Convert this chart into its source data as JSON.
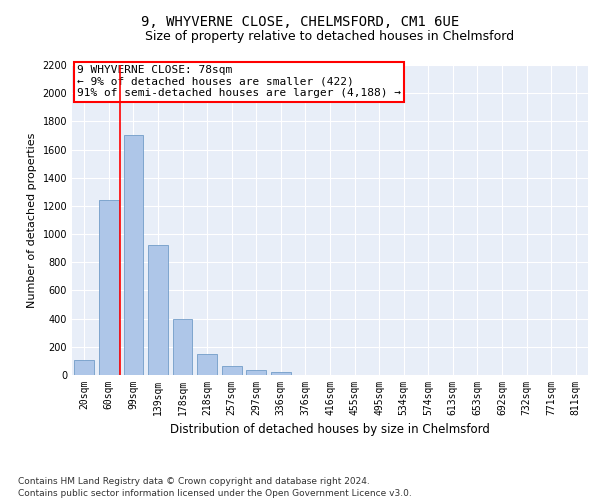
{
  "title": "9, WHYVERNE CLOSE, CHELMSFORD, CM1 6UE",
  "subtitle": "Size of property relative to detached houses in Chelmsford",
  "xlabel": "Distribution of detached houses by size in Chelmsford",
  "ylabel": "Number of detached properties",
  "categories": [
    "20sqm",
    "60sqm",
    "99sqm",
    "139sqm",
    "178sqm",
    "218sqm",
    "257sqm",
    "297sqm",
    "336sqm",
    "376sqm",
    "416sqm",
    "455sqm",
    "495sqm",
    "534sqm",
    "574sqm",
    "613sqm",
    "653sqm",
    "692sqm",
    "732sqm",
    "771sqm",
    "811sqm"
  ],
  "values": [
    110,
    1240,
    1700,
    920,
    400,
    150,
    65,
    35,
    22,
    0,
    0,
    0,
    0,
    0,
    0,
    0,
    0,
    0,
    0,
    0,
    0
  ],
  "bar_color": "#aec6e8",
  "bar_edge_color": "#6090c0",
  "bar_width": 0.8,
  "property_line_x": 1.45,
  "annotation_line1": "9 WHYVERNE CLOSE: 78sqm",
  "annotation_line2": "← 9% of detached houses are smaller (422)",
  "annotation_line3": "91% of semi-detached houses are larger (4,188) →",
  "annotation_box_color": "white",
  "annotation_box_edge_color": "red",
  "vline_color": "red",
  "ylim": [
    0,
    2200
  ],
  "yticks": [
    0,
    200,
    400,
    600,
    800,
    1000,
    1200,
    1400,
    1600,
    1800,
    2000,
    2200
  ],
  "background_color": "#e8eef8",
  "footer_line1": "Contains HM Land Registry data © Crown copyright and database right 2024.",
  "footer_line2": "Contains public sector information licensed under the Open Government Licence v3.0.",
  "title_fontsize": 10,
  "subtitle_fontsize": 9,
  "xlabel_fontsize": 8.5,
  "ylabel_fontsize": 8,
  "tick_fontsize": 7,
  "footer_fontsize": 6.5,
  "annotation_fontsize": 8
}
